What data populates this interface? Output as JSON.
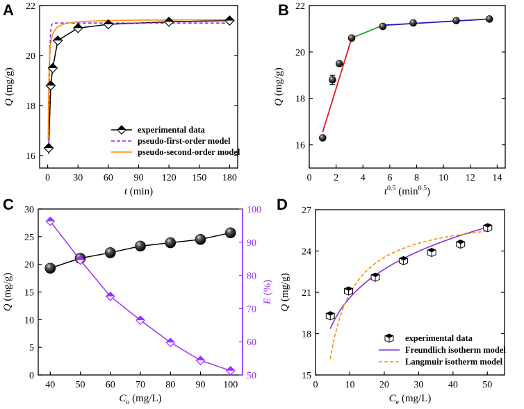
{
  "colors": {
    "pfo": "#8a2be2",
    "pso": "#ff8c00",
    "seg1": "#e31a1c",
    "seg2": "#2ca02c",
    "seg3": "#1f1fb4",
    "efficiency": "#9b30ff",
    "freundlich": "#8a2be2",
    "langmuir": "#ff8c00"
  },
  "chart_data": [
    {
      "panel": "A",
      "type": "scatter",
      "xlabel": "t",
      "xlabel_unit": " (min)",
      "ylabel": "Q",
      "ylabel_unit": " (mg/g)",
      "xlim": [
        -8,
        188
      ],
      "ylim": [
        15.5,
        22
      ],
      "xticks": [
        0,
        30,
        60,
        90,
        120,
        150,
        180
      ],
      "yticks": [
        16,
        18,
        20,
        22
      ],
      "series": [
        {
          "name": "experimental data",
          "x": [
            1,
            3,
            5,
            10,
            30,
            60,
            120,
            180
          ],
          "y": [
            16.3,
            18.8,
            19.5,
            20.6,
            21.1,
            21.25,
            21.35,
            21.4
          ],
          "marker": "diamond"
        },
        {
          "name": "pseudo-first-order model",
          "curve": "pfo",
          "qe": 21.3,
          "k": 1.4,
          "line": "dashed"
        },
        {
          "name": "pseudo-second-order model",
          "curve": "pso",
          "qe": 21.45,
          "k": 0.32,
          "line": "solid"
        }
      ]
    },
    {
      "panel": "B",
      "type": "scatter",
      "xlabel": "t",
      "xlabel_sup": "0.5",
      "xlabel_unit": " (min",
      "xlabel_unit_sup": "0.5",
      "xlabel_unit_end": ")",
      "ylabel": "Q",
      "ylabel_unit": " (mg/g)",
      "xlim": [
        0,
        14.6
      ],
      "ylim": [
        15,
        22
      ],
      "xticks": [
        0,
        2,
        4,
        6,
        8,
        10,
        12,
        14
      ],
      "yticks": [
        16,
        18,
        20,
        22
      ],
      "series": [
        {
          "name": "experimental data",
          "x": [
            1.0,
            1.73,
            2.24,
            3.16,
            5.48,
            7.75,
            10.95,
            13.42
          ],
          "y": [
            16.3,
            18.8,
            19.5,
            20.6,
            21.1,
            21.25,
            21.35,
            21.42
          ],
          "err": [
            0.05,
            0.2,
            0.08,
            0.05,
            0.1,
            0.05,
            0.05,
            0.05
          ],
          "marker": "sphere"
        },
        {
          "name": "stage-1 fit",
          "x": [
            1.0,
            3.16
          ],
          "y": [
            16.55,
            20.6
          ]
        },
        {
          "name": "stage-2 fit",
          "x": [
            3.16,
            5.48
          ],
          "y": [
            20.6,
            21.15
          ]
        },
        {
          "name": "stage-3 fit",
          "x": [
            5.48,
            13.42
          ],
          "y": [
            21.15,
            21.42
          ]
        }
      ]
    },
    {
      "panel": "C",
      "type": "line",
      "xlabel": "C",
      "xlabel_sub": "o",
      "xlabel_unit": " (mg/L)",
      "ylabel": "Q",
      "ylabel_unit": " (mg/g)",
      "y2label": "E",
      "y2label_unit": " (%)",
      "xlim": [
        36,
        104
      ],
      "ylim": [
        0,
        30
      ],
      "y2lim": [
        50,
        100
      ],
      "xticks": [
        40,
        50,
        60,
        70,
        80,
        90,
        100
      ],
      "yticks": [
        0,
        5,
        10,
        15,
        20,
        25,
        30
      ],
      "y2ticks": [
        50,
        60,
        70,
        80,
        90,
        100
      ],
      "series": [
        {
          "name": "Q",
          "axis": "left",
          "x": [
            40,
            50,
            60,
            70,
            80,
            90,
            100
          ],
          "y": [
            19.3,
            21.1,
            22.1,
            23.3,
            23.9,
            24.5,
            25.7
          ],
          "marker": "sphere"
        },
        {
          "name": "E",
          "axis": "right",
          "x": [
            40,
            50,
            60,
            70,
            80,
            90,
            100
          ],
          "y": [
            96.3,
            84.6,
            73.7,
            66.5,
            59.8,
            54.4,
            51.3
          ],
          "marker": "diamond"
        }
      ]
    },
    {
      "panel": "D",
      "type": "scatter",
      "xlabel": "C",
      "xlabel_sub": "e",
      "xlabel_unit": " (mg/L)",
      "ylabel": "Q",
      "ylabel_unit": " (mg/g)",
      "xlim": [
        0,
        55
      ],
      "ylim": [
        15,
        27
      ],
      "xticks": [
        0,
        10,
        20,
        30,
        40,
        50
      ],
      "yticks": [
        15,
        18,
        21,
        24,
        27
      ],
      "series": [
        {
          "name": "experimental data",
          "x": [
            4.3,
            9.6,
            17.4,
            25.6,
            33.8,
            42.2,
            50.1
          ],
          "y": [
            19.3,
            21.1,
            22.1,
            23.3,
            23.9,
            24.5,
            25.7
          ],
          "marker": "cube"
        },
        {
          "name": "Freundlich isotherm model",
          "curve": "freundlich",
          "Kf": 15.02,
          "n": 7.27,
          "xrange": [
            4.3,
            50
          ],
          "line": "solid"
        },
        {
          "name": "Langmuir isotherm model",
          "curve": "langmuir",
          "qm": 26.9,
          "KL": 0.35,
          "xrange": [
            4.3,
            50
          ],
          "line": "dashed"
        }
      ]
    }
  ]
}
